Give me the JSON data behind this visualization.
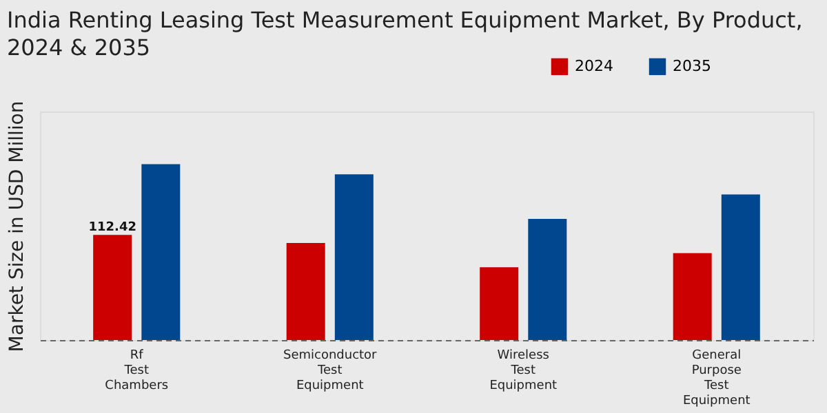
{
  "chart_data": {
    "type": "bar",
    "title": "India Renting Leasing Test Measurement Equipment Market, By Product, 2024 & 2035",
    "ylabel": "Market Size in USD Million",
    "categories": [
      "Rf Test Chambers",
      "Semiconductor Test Equipment",
      "Wireless Test Equipment",
      "General Purpose Test Equipment"
    ],
    "legend": "top right",
    "grid": false,
    "series": [
      {
        "name": "2024",
        "color": "#cc0000",
        "values": [
          112.42,
          103.8,
          77.8,
          93.0
        ],
        "value_labels": [
          "112.42",
          null,
          null,
          null
        ]
      },
      {
        "name": "2035",
        "color": "#00478f",
        "values": [
          188.1,
          177.3,
          129.7,
          155.7
        ]
      }
    ]
  }
}
